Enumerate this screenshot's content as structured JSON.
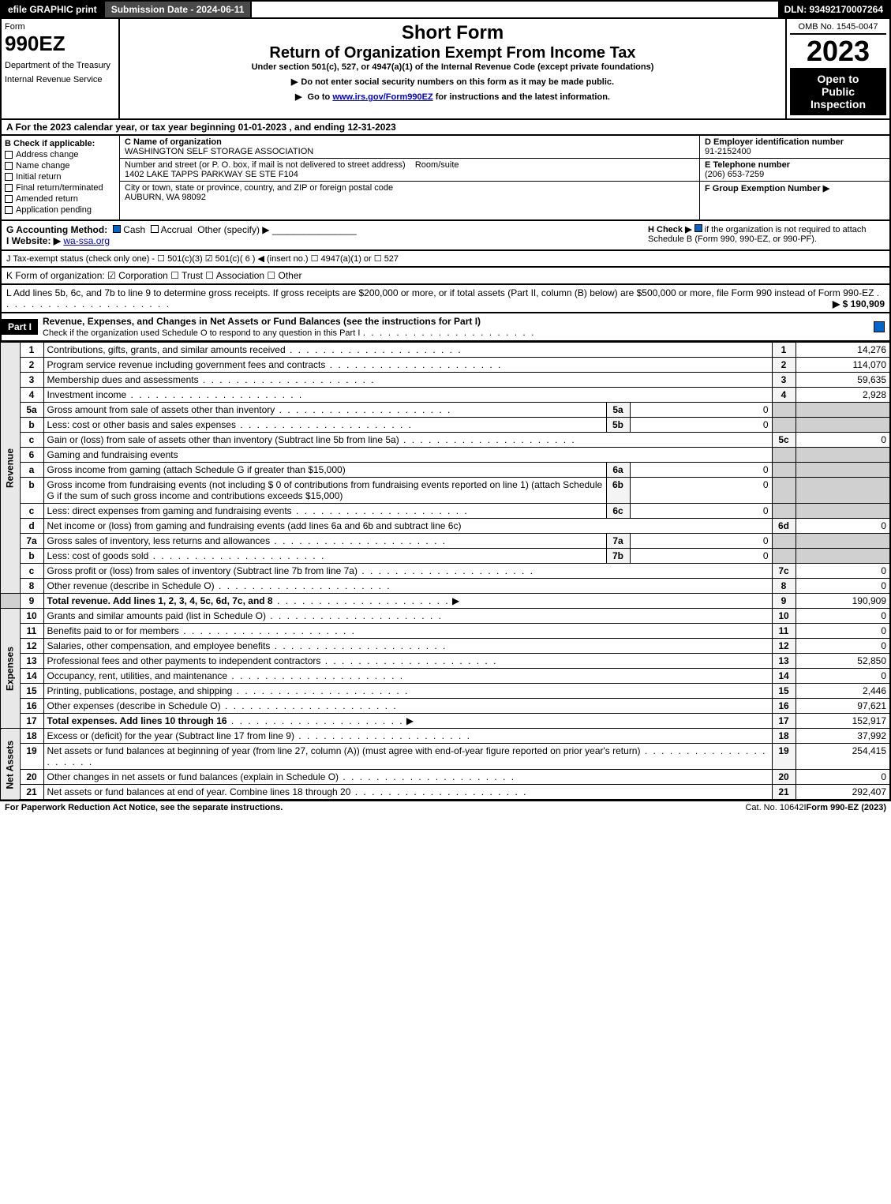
{
  "topbar": {
    "efile": "efile GRAPHIC print",
    "submission_label": "Submission Date - 2024-06-11",
    "dln": "DLN: 93492170007264"
  },
  "header": {
    "form_label": "Form",
    "form_number": "990EZ",
    "dept1": "Department of the Treasury",
    "dept2": "Internal Revenue Service",
    "short_form": "Short Form",
    "return_title": "Return of Organization Exempt From Income Tax",
    "under_section": "Under section 501(c), 527, or 4947(a)(1) of the Internal Revenue Code (except private foundations)",
    "line1": "Do not enter social security numbers on this form as it may be made public.",
    "line2_a": "Go to ",
    "line2_link": "www.irs.gov/Form990EZ",
    "line2_b": " for instructions and the latest information.",
    "omb": "OMB No. 1545-0047",
    "year": "2023",
    "open1": "Open to",
    "open2": "Public",
    "open3": "Inspection"
  },
  "section_a": "A  For the 2023 calendar year, or tax year beginning 01-01-2023 , and ending 12-31-2023",
  "col_b": {
    "title": "B  Check if applicable:",
    "opts": [
      "Address change",
      "Name change",
      "Initial return",
      "Final return/terminated",
      "Amended return",
      "Application pending"
    ]
  },
  "col_c": {
    "name_label": "C Name of organization",
    "name": "WASHINGTON SELF STORAGE ASSOCIATION",
    "addr_label": "Number and street (or P. O. box, if mail is not delivered to street address)",
    "room_label": "Room/suite",
    "addr": "1402 LAKE TAPPS PARKWAY SE STE F104",
    "city_label": "City or town, state or province, country, and ZIP or foreign postal code",
    "city": "AUBURN, WA  98092"
  },
  "col_def": {
    "d_label": "D Employer identification number",
    "d_val": "91-2152400",
    "e_label": "E Telephone number",
    "e_val": "(206) 653-7259",
    "f_label": "F Group Exemption Number ▶"
  },
  "row_g": {
    "g": "G Accounting Method:",
    "cash": "Cash",
    "accrual": "Accrual",
    "other": "Other (specify) ▶",
    "h": "H  Check ▶",
    "h_text": "if the organization is not required to attach Schedule B (Form 990, 990-EZ, or 990-PF)."
  },
  "row_i": {
    "label": "I Website: ▶",
    "val": "wa-ssa.org"
  },
  "row_j": "J Tax-exempt status (check only one) - ☐ 501(c)(3) ☑ 501(c)( 6 ) ◀ (insert no.) ☐ 4947(a)(1) or ☐ 527",
  "row_k": "K Form of organization:  ☑ Corporation  ☐ Trust  ☐ Association  ☐ Other",
  "row_l": {
    "text": "L Add lines 5b, 6c, and 7b to line 9 to determine gross receipts. If gross receipts are $200,000 or more, or if total assets (Part II, column (B) below) are $500,000 or more, file Form 990 instead of Form 990-EZ",
    "amount": "▶ $ 190,909"
  },
  "part1": {
    "label": "Part I",
    "title": "Revenue, Expenses, and Changes in Net Assets or Fund Balances (see the instructions for Part I)",
    "sub": "Check if the organization used Schedule O to respond to any question in this Part I"
  },
  "revenue_label": "Revenue",
  "expenses_label": "Expenses",
  "netassets_label": "Net Assets",
  "lines": {
    "l1": {
      "n": "1",
      "d": "Contributions, gifts, grants, and similar amounts received",
      "ln": "1",
      "v": "14,276"
    },
    "l2": {
      "n": "2",
      "d": "Program service revenue including government fees and contracts",
      "ln": "2",
      "v": "114,070"
    },
    "l3": {
      "n": "3",
      "d": "Membership dues and assessments",
      "ln": "3",
      "v": "59,635"
    },
    "l4": {
      "n": "4",
      "d": "Investment income",
      "ln": "4",
      "v": "2,928"
    },
    "l5a": {
      "n": "5a",
      "d": "Gross amount from sale of assets other than inventory",
      "sn": "5a",
      "sv": "0"
    },
    "l5b": {
      "n": "b",
      "d": "Less: cost or other basis and sales expenses",
      "sn": "5b",
      "sv": "0"
    },
    "l5c": {
      "n": "c",
      "d": "Gain or (loss) from sale of assets other than inventory (Subtract line 5b from line 5a)",
      "ln": "5c",
      "v": "0"
    },
    "l6": {
      "n": "6",
      "d": "Gaming and fundraising events"
    },
    "l6a": {
      "n": "a",
      "d": "Gross income from gaming (attach Schedule G if greater than $15,000)",
      "sn": "6a",
      "sv": "0"
    },
    "l6b": {
      "n": "b",
      "d": "Gross income from fundraising events (not including $ 0   of contributions from fundraising events reported on line 1) (attach Schedule G if the sum of such gross income and contributions exceeds $15,000)",
      "sn": "6b",
      "sv": "0"
    },
    "l6c": {
      "n": "c",
      "d": "Less: direct expenses from gaming and fundraising events",
      "sn": "6c",
      "sv": "0"
    },
    "l6d": {
      "n": "d",
      "d": "Net income or (loss) from gaming and fundraising events (add lines 6a and 6b and subtract line 6c)",
      "ln": "6d",
      "v": "0"
    },
    "l7a": {
      "n": "7a",
      "d": "Gross sales of inventory, less returns and allowances",
      "sn": "7a",
      "sv": "0"
    },
    "l7b": {
      "n": "b",
      "d": "Less: cost of goods sold",
      "sn": "7b",
      "sv": "0"
    },
    "l7c": {
      "n": "c",
      "d": "Gross profit or (loss) from sales of inventory (Subtract line 7b from line 7a)",
      "ln": "7c",
      "v": "0"
    },
    "l8": {
      "n": "8",
      "d": "Other revenue (describe in Schedule O)",
      "ln": "8",
      "v": "0"
    },
    "l9": {
      "n": "9",
      "d": "Total revenue. Add lines 1, 2, 3, 4, 5c, 6d, 7c, and 8",
      "ln": "9",
      "v": "190,909"
    },
    "l10": {
      "n": "10",
      "d": "Grants and similar amounts paid (list in Schedule O)",
      "ln": "10",
      "v": "0"
    },
    "l11": {
      "n": "11",
      "d": "Benefits paid to or for members",
      "ln": "11",
      "v": "0"
    },
    "l12": {
      "n": "12",
      "d": "Salaries, other compensation, and employee benefits",
      "ln": "12",
      "v": "0"
    },
    "l13": {
      "n": "13",
      "d": "Professional fees and other payments to independent contractors",
      "ln": "13",
      "v": "52,850"
    },
    "l14": {
      "n": "14",
      "d": "Occupancy, rent, utilities, and maintenance",
      "ln": "14",
      "v": "0"
    },
    "l15": {
      "n": "15",
      "d": "Printing, publications, postage, and shipping",
      "ln": "15",
      "v": "2,446"
    },
    "l16": {
      "n": "16",
      "d": "Other expenses (describe in Schedule O)",
      "ln": "16",
      "v": "97,621"
    },
    "l17": {
      "n": "17",
      "d": "Total expenses. Add lines 10 through 16",
      "ln": "17",
      "v": "152,917"
    },
    "l18": {
      "n": "18",
      "d": "Excess or (deficit) for the year (Subtract line 17 from line 9)",
      "ln": "18",
      "v": "37,992"
    },
    "l19": {
      "n": "19",
      "d": "Net assets or fund balances at beginning of year (from line 27, column (A)) (must agree with end-of-year figure reported on prior year's return)",
      "ln": "19",
      "v": "254,415"
    },
    "l20": {
      "n": "20",
      "d": "Other changes in net assets or fund balances (explain in Schedule O)",
      "ln": "20",
      "v": "0"
    },
    "l21": {
      "n": "21",
      "d": "Net assets or fund balances at end of year. Combine lines 18 through 20",
      "ln": "21",
      "v": "292,407"
    }
  },
  "footer": {
    "left": "For Paperwork Reduction Act Notice, see the separate instructions.",
    "center": "Cat. No. 10642I",
    "right": "Form 990-EZ (2023)"
  }
}
